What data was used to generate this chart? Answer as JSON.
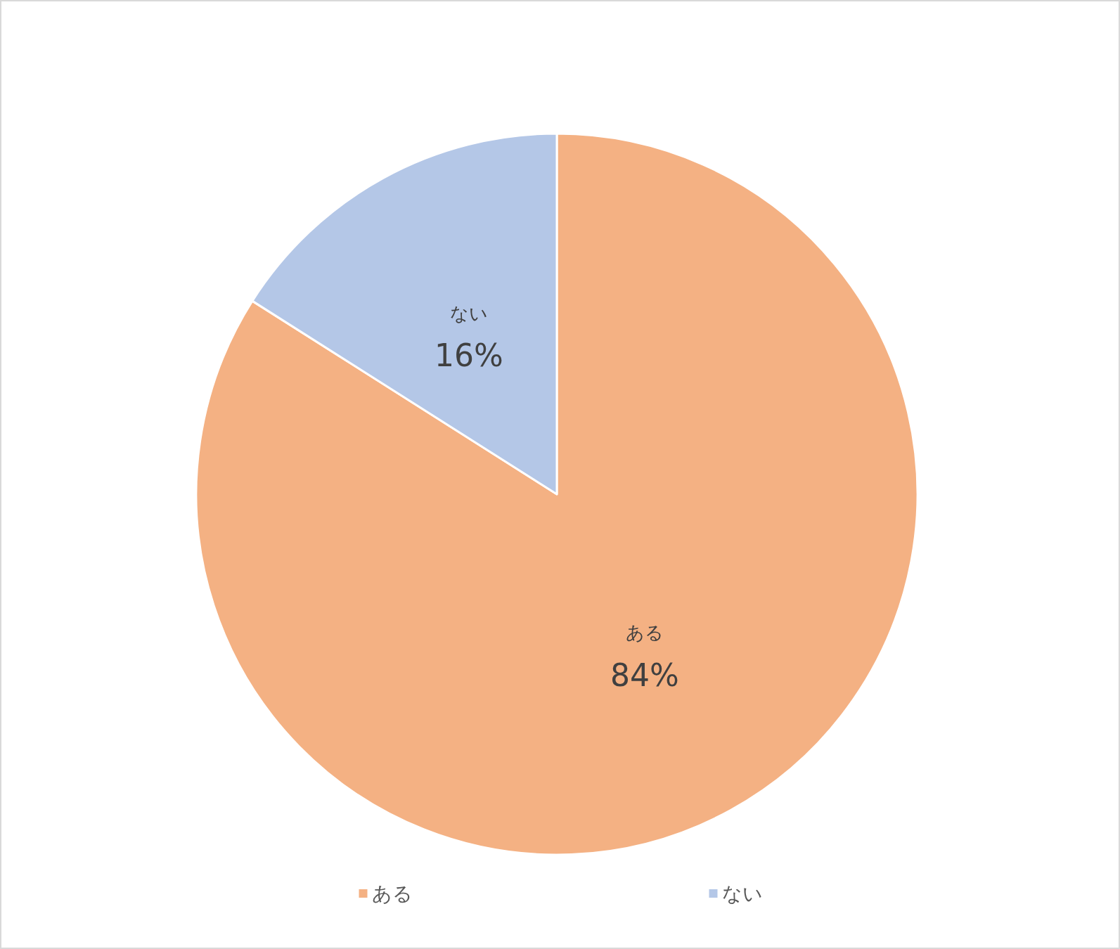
{
  "chart_data": {
    "type": "pie",
    "categories": [
      "ある",
      "ない"
    ],
    "values": [
      84,
      16
    ],
    "colors": [
      "#f4b183",
      "#b4c7e7"
    ],
    "value_labels": [
      "84%",
      "16%"
    ],
    "legend": "bottom"
  }
}
